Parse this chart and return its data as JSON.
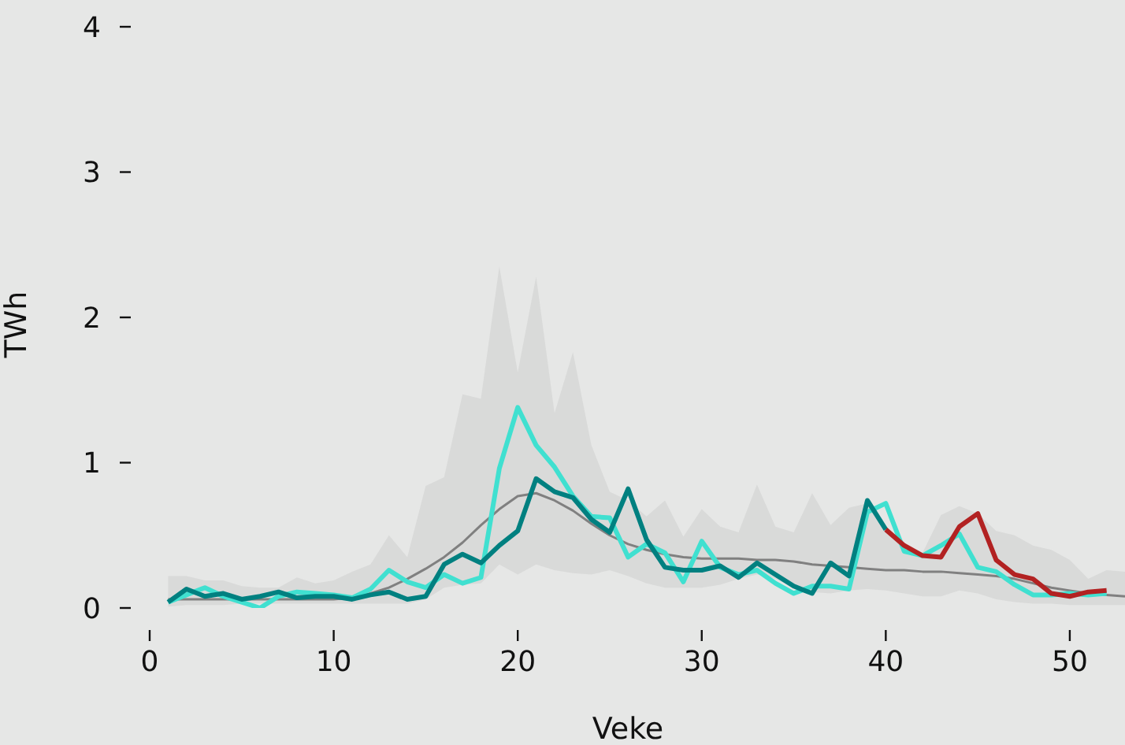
{
  "chart_data": {
    "type": "line",
    "xlabel": "Veke",
    "ylabel": "TWh",
    "x": [
      1,
      2,
      3,
      4,
      5,
      6,
      7,
      8,
      9,
      10,
      11,
      12,
      13,
      14,
      15,
      16,
      17,
      18,
      19,
      20,
      21,
      22,
      23,
      24,
      25,
      26,
      27,
      28,
      29,
      30,
      31,
      32,
      33,
      34,
      35,
      36,
      37,
      38,
      39,
      40,
      41,
      42,
      43,
      44,
      45,
      46,
      47,
      48,
      49,
      50,
      51,
      52,
      53
    ],
    "series": [
      {
        "color": "#808080",
        "values": [
          0.06,
          0.06,
          0.06,
          0.06,
          0.06,
          0.06,
          0.06,
          0.06,
          0.06,
          0.06,
          0.07,
          0.1,
          0.14,
          0.2,
          0.27,
          0.35,
          0.45,
          0.57,
          0.68,
          0.77,
          0.79,
          0.74,
          0.67,
          0.58,
          0.5,
          0.44,
          0.4,
          0.37,
          0.35,
          0.34,
          0.34,
          0.34,
          0.33,
          0.33,
          0.32,
          0.3,
          0.29,
          0.28,
          0.27,
          0.26,
          0.26,
          0.25,
          0.25,
          0.24,
          0.23,
          0.22,
          0.2,
          0.17,
          0.14,
          0.12,
          0.1,
          0.09,
          0.08
        ],
        "lower": [
          0.01,
          0.02,
          0.02,
          0.02,
          0.03,
          0.03,
          0.03,
          0.03,
          0.03,
          0.03,
          0.03,
          0.03,
          0.03,
          0.03,
          0.06,
          0.14,
          0.16,
          0.17,
          0.3,
          0.23,
          0.3,
          0.26,
          0.24,
          0.23,
          0.26,
          0.22,
          0.17,
          0.14,
          0.14,
          0.14,
          0.16,
          0.2,
          0.23,
          0.2,
          0.14,
          0.11,
          0.1,
          0.12,
          0.13,
          0.12,
          0.1,
          0.08,
          0.08,
          0.12,
          0.1,
          0.06,
          0.04,
          0.03,
          0.03,
          0.02,
          0.02,
          0.02,
          0.02
        ],
        "upper": [
          0.22,
          0.22,
          0.19,
          0.19,
          0.15,
          0.14,
          0.14,
          0.21,
          0.17,
          0.19,
          0.25,
          0.3,
          0.5,
          0.35,
          0.84,
          0.9,
          1.47,
          1.44,
          2.35,
          1.62,
          2.28,
          1.34,
          1.76,
          1.12,
          0.8,
          0.74,
          0.63,
          0.74,
          0.49,
          0.68,
          0.56,
          0.52,
          0.85,
          0.56,
          0.52,
          0.79,
          0.57,
          0.69,
          0.72,
          0.52,
          0.44,
          0.38,
          0.64,
          0.7,
          0.65,
          0.53,
          0.5,
          0.43,
          0.4,
          0.33,
          0.2,
          0.26,
          0.25
        ]
      },
      {
        "color": "#40e0d0",
        "values": [
          0.04,
          0.09,
          0.14,
          0.08,
          0.04,
          0.0,
          0.08,
          0.11,
          0.1,
          0.09,
          0.07,
          0.13,
          0.26,
          0.18,
          0.14,
          0.23,
          0.17,
          0.21,
          0.96,
          1.38,
          1.12,
          0.97,
          0.77,
          0.63,
          0.62,
          0.35,
          0.44,
          0.38,
          0.18,
          0.46,
          0.28,
          0.23,
          0.26,
          0.17,
          0.1,
          0.15,
          0.15,
          0.13,
          0.66,
          0.72,
          0.39,
          0.36,
          0.43,
          0.51,
          0.28,
          0.25,
          0.16,
          0.09,
          0.09,
          0.1,
          0.09,
          0.1,
          null
        ]
      },
      {
        "color": "#008080",
        "values": [
          0.04,
          0.13,
          0.08,
          0.1,
          0.06,
          0.08,
          0.11,
          0.07,
          0.08,
          0.08,
          0.06,
          0.09,
          0.11,
          0.06,
          0.08,
          0.3,
          0.37,
          0.31,
          0.43,
          0.53,
          0.89,
          0.8,
          0.76,
          0.61,
          0.52,
          0.82,
          0.47,
          0.28,
          0.26,
          0.26,
          0.29,
          0.21,
          0.31,
          0.23,
          0.15,
          0.1,
          0.31,
          0.22,
          0.74,
          0.54,
          null,
          null,
          null,
          null,
          null,
          null,
          null,
          null,
          null,
          null,
          null,
          null,
          null
        ]
      },
      {
        "color": "#b22222",
        "values": [
          null,
          null,
          null,
          null,
          null,
          null,
          null,
          null,
          null,
          null,
          null,
          null,
          null,
          null,
          null,
          null,
          null,
          null,
          null,
          null,
          null,
          null,
          null,
          null,
          null,
          null,
          null,
          null,
          null,
          null,
          null,
          null,
          null,
          null,
          null,
          null,
          null,
          null,
          null,
          0.54,
          0.43,
          0.36,
          0.35,
          0.56,
          0.65,
          0.33,
          0.23,
          0.2,
          0.1,
          0.08,
          0.11,
          0.12,
          null
        ]
      }
    ],
    "xlim": [
      0,
      53
    ],
    "xticks": [
      0,
      10,
      20,
      30,
      40,
      50
    ],
    "ylim": [
      0,
      4
    ],
    "yticks": [
      0,
      1,
      2,
      3,
      4
    ],
    "grid": false
  }
}
